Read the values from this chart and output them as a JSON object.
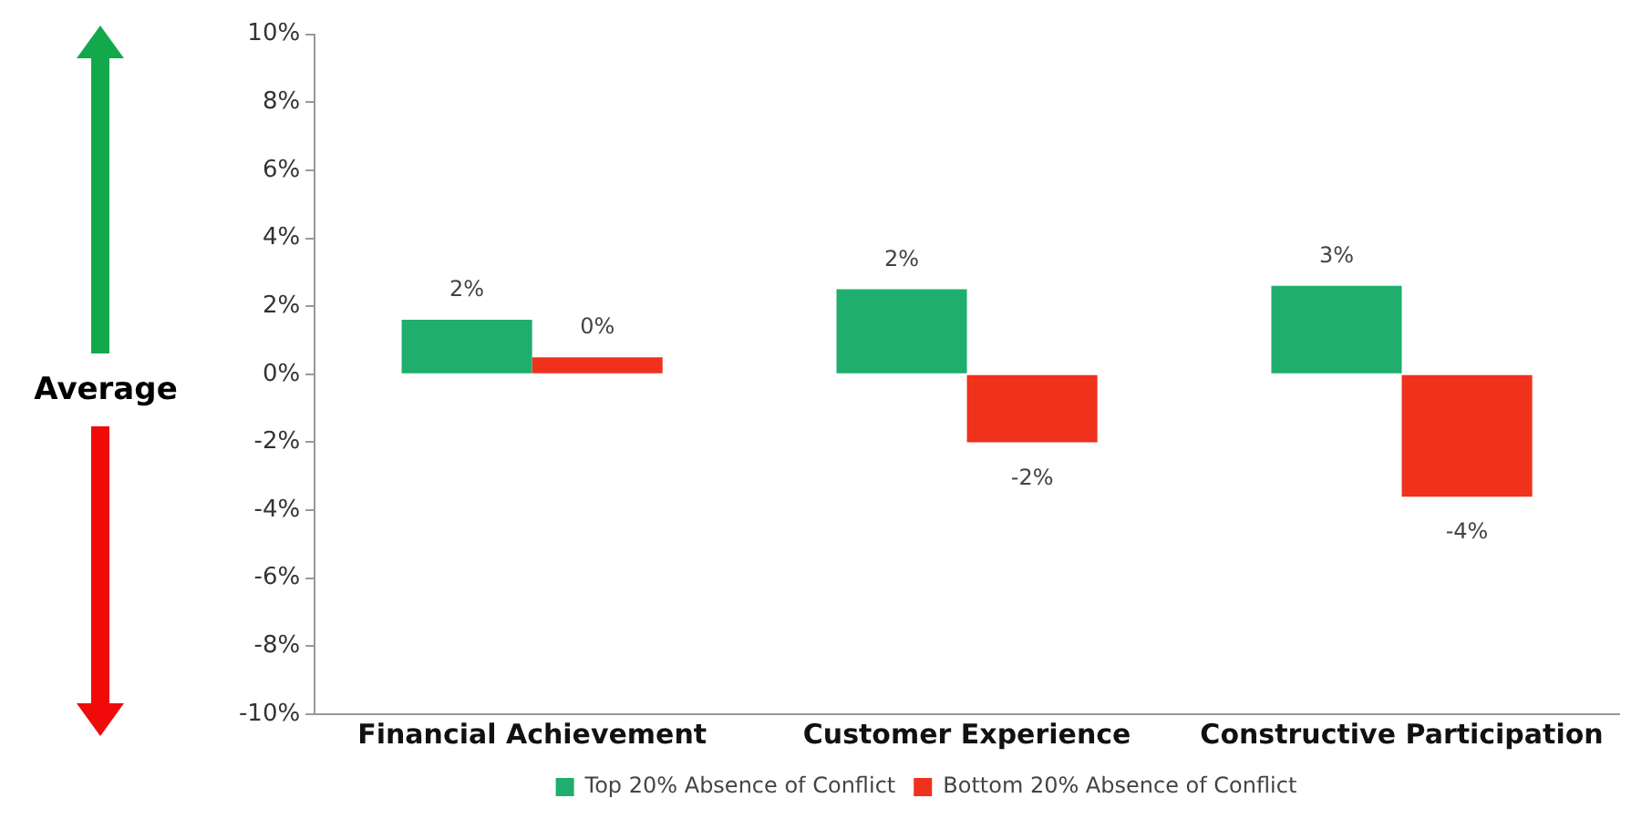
{
  "chart_data": {
    "type": "bar",
    "categories": [
      "Financial Achievement",
      "Customer Experience",
      "Constructive Participation"
    ],
    "series": [
      {
        "name": "Top 20% Absence of Conflict",
        "color": "#1fae6e",
        "values": [
          1.6,
          2.5,
          2.6
        ],
        "value_labels": [
          "2%",
          "2%",
          "3%"
        ]
      },
      {
        "name": "Bottom 20% Absence of Conflict",
        "color": "#f0311c",
        "values": [
          0.5,
          -2.0,
          -3.6
        ],
        "value_labels": [
          "0%",
          "-2%",
          "-4%"
        ]
      }
    ],
    "ylim": [
      -10,
      10
    ],
    "yticks": [
      {
        "value": -10,
        "label": "-10%"
      },
      {
        "value": -8,
        "label": "-8%"
      },
      {
        "value": -6,
        "label": "-6%"
      },
      {
        "value": -4,
        "label": "-4%"
      },
      {
        "value": -2,
        "label": "-2%"
      },
      {
        "value": 0,
        "label": "0%"
      },
      {
        "value": 2,
        "label": "2%"
      },
      {
        "value": 4,
        "label": "4%"
      },
      {
        "value": 6,
        "label": "6%"
      },
      {
        "value": 8,
        "label": "8%"
      },
      {
        "value": 10,
        "label": "10%"
      }
    ],
    "annotations": [
      "Average"
    ],
    "legend": "bottom",
    "grid": false
  }
}
